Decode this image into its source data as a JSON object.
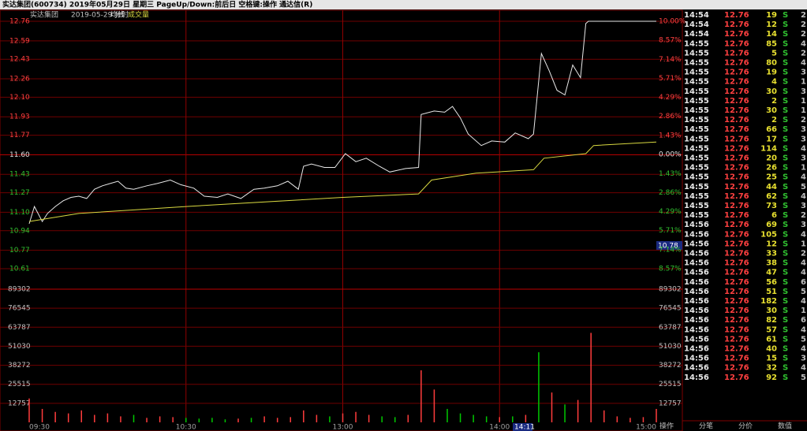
{
  "header": {
    "title": "实达集团(600734)  2019年05月29日  星期三  PageUp/Down:前后日  空格键:操作  通达信(R)"
  },
  "legend": {
    "stock": "实达集团",
    "period": "2019-05-29 分时",
    "avg": "均线",
    "volume": "成交量"
  },
  "cursor": {
    "price": "10.78",
    "time": "14:11"
  },
  "chart_data": [
    {
      "type": "line",
      "ylim": [
        10.61,
        12.76
      ],
      "yticks": [
        12.76,
        12.59,
        12.43,
        12.26,
        {
          "value": 12.1,
          "label": "12.10"
        },
        11.93,
        11.77,
        {
          "value": 11.6,
          "label": "11.60"
        },
        11.43,
        11.27,
        {
          "value": 11.1,
          "label": "11.10"
        },
        10.94,
        10.77,
        10.61
      ],
      "y2lim": [
        -8.57,
        10
      ],
      "y2ticks": [
        {
          "value": 10,
          "label": "10.00%"
        },
        {
          "value": 8.57,
          "label": "8.57%"
        },
        {
          "value": 7.14,
          "label": "7.14%"
        },
        {
          "value": 5.71,
          "label": "5.71%"
        },
        {
          "value": 4.29,
          "label": "4.29%"
        },
        {
          "value": 2.86,
          "label": "2.86%"
        },
        {
          "value": 1.43,
          "label": "1.43%"
        },
        {
          "value": 0,
          "label": "0.00%"
        },
        {
          "value": -1.43,
          "label": "1.43%"
        },
        {
          "value": -2.86,
          "label": "2.86%"
        },
        {
          "value": -4.29,
          "label": "4.29%"
        },
        {
          "value": -5.71,
          "label": "5.71%"
        },
        {
          "value": -7.14,
          "label": "7.14%"
        },
        {
          "value": -8.57,
          "label": "8.57%"
        }
      ],
      "xlim": [
        0,
        240
      ],
      "xticks": [
        {
          "value": 0,
          "label": "09:30"
        },
        {
          "value": 60,
          "label": "10:30"
        },
        {
          "value": 120,
          "label": "13:00"
        },
        {
          "value": 180,
          "label": "14:00"
        },
        {
          "value": 240,
          "label": "15:00"
        }
      ],
      "series": [
        {
          "name": "价格",
          "color": "#e8e8e8",
          "x": [
            0,
            2,
            5,
            7,
            10,
            13,
            16,
            19,
            22,
            25,
            28,
            31,
            34,
            37,
            40,
            45,
            49,
            54,
            58,
            63,
            67,
            72,
            76,
            81,
            86,
            90,
            95,
            99,
            103,
            105,
            108,
            113,
            117,
            121,
            125,
            129,
            134,
            138,
            144,
            149,
            150,
            155,
            159,
            162,
            165,
            168,
            173,
            177,
            182,
            186,
            191,
            193,
            196,
            199,
            202,
            205,
            208,
            211,
            213,
            214,
            240
          ],
          "values": [
            11.0,
            11.15,
            11.02,
            11.09,
            11.15,
            11.2,
            11.23,
            11.24,
            11.22,
            11.3,
            11.33,
            11.35,
            11.37,
            11.31,
            11.3,
            11.33,
            11.35,
            11.38,
            11.34,
            11.31,
            11.24,
            11.23,
            11.26,
            11.22,
            11.3,
            11.31,
            11.33,
            11.37,
            11.3,
            11.5,
            11.52,
            11.49,
            11.49,
            11.61,
            11.54,
            11.57,
            11.5,
            11.45,
            11.48,
            11.49,
            11.95,
            11.98,
            11.97,
            12.02,
            11.92,
            11.78,
            11.68,
            11.72,
            11.71,
            11.79,
            11.74,
            11.78,
            12.48,
            12.33,
            12.16,
            12.12,
            12.38,
            12.27,
            12.74,
            12.76,
            12.76
          ]
        },
        {
          "name": "均线",
          "color": "#d8d840",
          "x": [
            0,
            19,
            60,
            120,
            149,
            154,
            171,
            193,
            197,
            213,
            216,
            240
          ],
          "values": [
            11.02,
            11.09,
            11.15,
            11.23,
            11.26,
            11.38,
            11.44,
            11.47,
            11.57,
            11.61,
            11.68,
            11.71
          ]
        }
      ]
    },
    {
      "type": "bar",
      "ylim": [
        0,
        89302
      ],
      "yticks": [
        89302,
        76545,
        63787,
        51030,
        38272,
        25515,
        12757
      ],
      "xlim": [
        0,
        240
      ],
      "x": [
        0,
        5,
        10,
        15,
        20,
        25,
        30,
        35,
        40,
        45,
        50,
        55,
        60,
        65,
        70,
        75,
        80,
        85,
        90,
        95,
        100,
        105,
        110,
        115,
        120,
        125,
        130,
        135,
        140,
        145,
        150,
        155,
        160,
        165,
        170,
        175,
        180,
        185,
        190,
        195,
        200,
        205,
        210,
        215,
        220,
        225,
        230,
        235,
        240
      ],
      "values": [
        16000,
        9000,
        7000,
        6000,
        8000,
        5000,
        6000,
        4000,
        5000,
        3000,
        4000,
        3500,
        3000,
        2500,
        3000,
        2000,
        2500,
        3000,
        4000,
        3000,
        3500,
        8000,
        5000,
        4000,
        6000,
        7000,
        5000,
        4000,
        3500,
        5000,
        34900,
        22000,
        9000,
        6000,
        5000,
        4000,
        3500,
        4000,
        5000,
        47000,
        20000,
        12000,
        15000,
        60000,
        8000,
        4000,
        3000,
        3500,
        9000
      ],
      "up_color": "#ff3c3c",
      "down_color": "#00c800"
    }
  ],
  "trades": {
    "rows": [
      [
        "14:54",
        "12.76",
        "19",
        "S",
        "2"
      ],
      [
        "14:54",
        "12.76",
        "12",
        "S",
        "2"
      ],
      [
        "14:54",
        "12.76",
        "14",
        "S",
        "2"
      ],
      [
        "14:55",
        "12.76",
        "85",
        "S",
        "4"
      ],
      [
        "14:55",
        "12.76",
        "5",
        "S",
        "2"
      ],
      [
        "14:55",
        "12.76",
        "80",
        "S",
        "4"
      ],
      [
        "14:55",
        "12.76",
        "19",
        "S",
        "3"
      ],
      [
        "14:55",
        "12.76",
        "4",
        "S",
        "1"
      ],
      [
        "14:55",
        "12.76",
        "30",
        "S",
        "3"
      ],
      [
        "14:55",
        "12.76",
        "2",
        "S",
        "1"
      ],
      [
        "14:55",
        "12.76",
        "30",
        "S",
        "1"
      ],
      [
        "14:55",
        "12.76",
        "2",
        "S",
        "2"
      ],
      [
        "14:55",
        "12.76",
        "66",
        "S",
        "3"
      ],
      [
        "14:55",
        "12.76",
        "17",
        "S",
        "3"
      ],
      [
        "14:55",
        "12.76",
        "114",
        "S",
        "4"
      ],
      [
        "14:55",
        "12.76",
        "20",
        "S",
        "3"
      ],
      [
        "14:55",
        "12.76",
        "26",
        "S",
        "1"
      ],
      [
        "14:55",
        "12.76",
        "25",
        "S",
        "4"
      ],
      [
        "14:55",
        "12.76",
        "44",
        "S",
        "5"
      ],
      [
        "14:55",
        "12.76",
        "62",
        "S",
        "4"
      ],
      [
        "14:55",
        "12.76",
        "73",
        "S",
        "3"
      ],
      [
        "14:55",
        "12.76",
        "6",
        "S",
        "2"
      ],
      [
        "14:56",
        "12.76",
        "69",
        "S",
        "3"
      ],
      [
        "14:56",
        "12.76",
        "105",
        "S",
        "4"
      ],
      [
        "14:56",
        "12.76",
        "12",
        "S",
        "1"
      ],
      [
        "14:56",
        "12.76",
        "33",
        "S",
        "2"
      ],
      [
        "14:56",
        "12.76",
        "38",
        "S",
        "4"
      ],
      [
        "14:56",
        "12.76",
        "47",
        "S",
        "4"
      ],
      [
        "14:56",
        "12.76",
        "56",
        "S",
        "6"
      ],
      [
        "14:56",
        "12.76",
        "51",
        "S",
        "5"
      ],
      [
        "14:56",
        "12.76",
        "182",
        "S",
        "4"
      ],
      [
        "14:56",
        "12.76",
        "30",
        "S",
        "1"
      ],
      [
        "14:56",
        "12.76",
        "82",
        "S",
        "6"
      ],
      [
        "14:56",
        "12.76",
        "57",
        "S",
        "4"
      ],
      [
        "14:56",
        "12.76",
        "61",
        "S",
        "5"
      ],
      [
        "14:56",
        "12.76",
        "40",
        "S",
        "4"
      ],
      [
        "14:56",
        "12.76",
        "15",
        "S",
        "3"
      ],
      [
        "14:56",
        "12.76",
        "32",
        "S",
        "4"
      ],
      [
        "14:56",
        "12.76",
        "92",
        "S",
        "5"
      ]
    ],
    "tabs": [
      "分笔",
      "分价",
      "数值"
    ],
    "action": "操作"
  }
}
